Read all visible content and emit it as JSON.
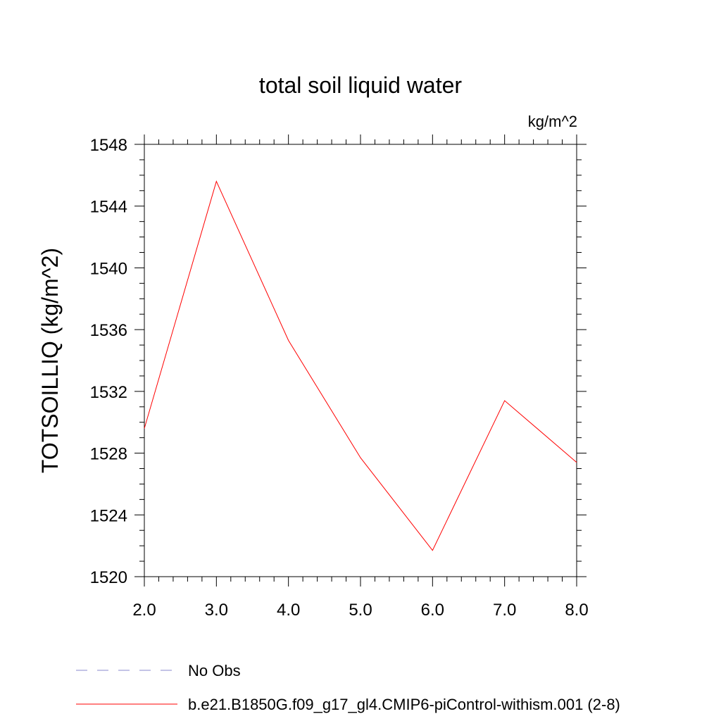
{
  "chart_data": {
    "type": "line",
    "title": "total soil liquid water",
    "units_label": "kg/m^2",
    "xlabel": "",
    "ylabel": "TOTSOILLIQ  (kg/m^2)",
    "xlim": [
      2.0,
      8.0
    ],
    "ylim": [
      1520,
      1548
    ],
    "x_ticks": [
      2.0,
      3.0,
      4.0,
      5.0,
      6.0,
      7.0,
      8.0
    ],
    "x_tick_labels": [
      "2.0",
      "3.0",
      "4.0",
      "5.0",
      "6.0",
      "7.0",
      "8.0"
    ],
    "y_ticks": [
      1520,
      1524,
      1528,
      1532,
      1536,
      1540,
      1544,
      1548
    ],
    "y_tick_labels": [
      "1520",
      "1524",
      "1528",
      "1532",
      "1536",
      "1540",
      "1544",
      "1548"
    ],
    "grid": false,
    "legend_position": "bottom",
    "series": [
      {
        "name": "b.e21.B1850G.f09_g17_gl4.CMIP6-piControl-withism.001 (2-8)",
        "color": "#ff0000",
        "line_style": "solid",
        "x": [
          2.0,
          3.0,
          4.0,
          5.0,
          6.0,
          7.0,
          8.0
        ],
        "values": [
          1529.6,
          1545.6,
          1535.3,
          1527.7,
          1521.7,
          1531.4,
          1527.4
        ]
      }
    ],
    "legend": [
      {
        "label": "No Obs",
        "color": "#8888cc",
        "line_style": "dashed"
      },
      {
        "label": "b.e21.B1850G.f09_g17_gl4.CMIP6-piControl-withism.001 (2-8)",
        "color": "#ff0000",
        "line_style": "solid"
      }
    ]
  }
}
